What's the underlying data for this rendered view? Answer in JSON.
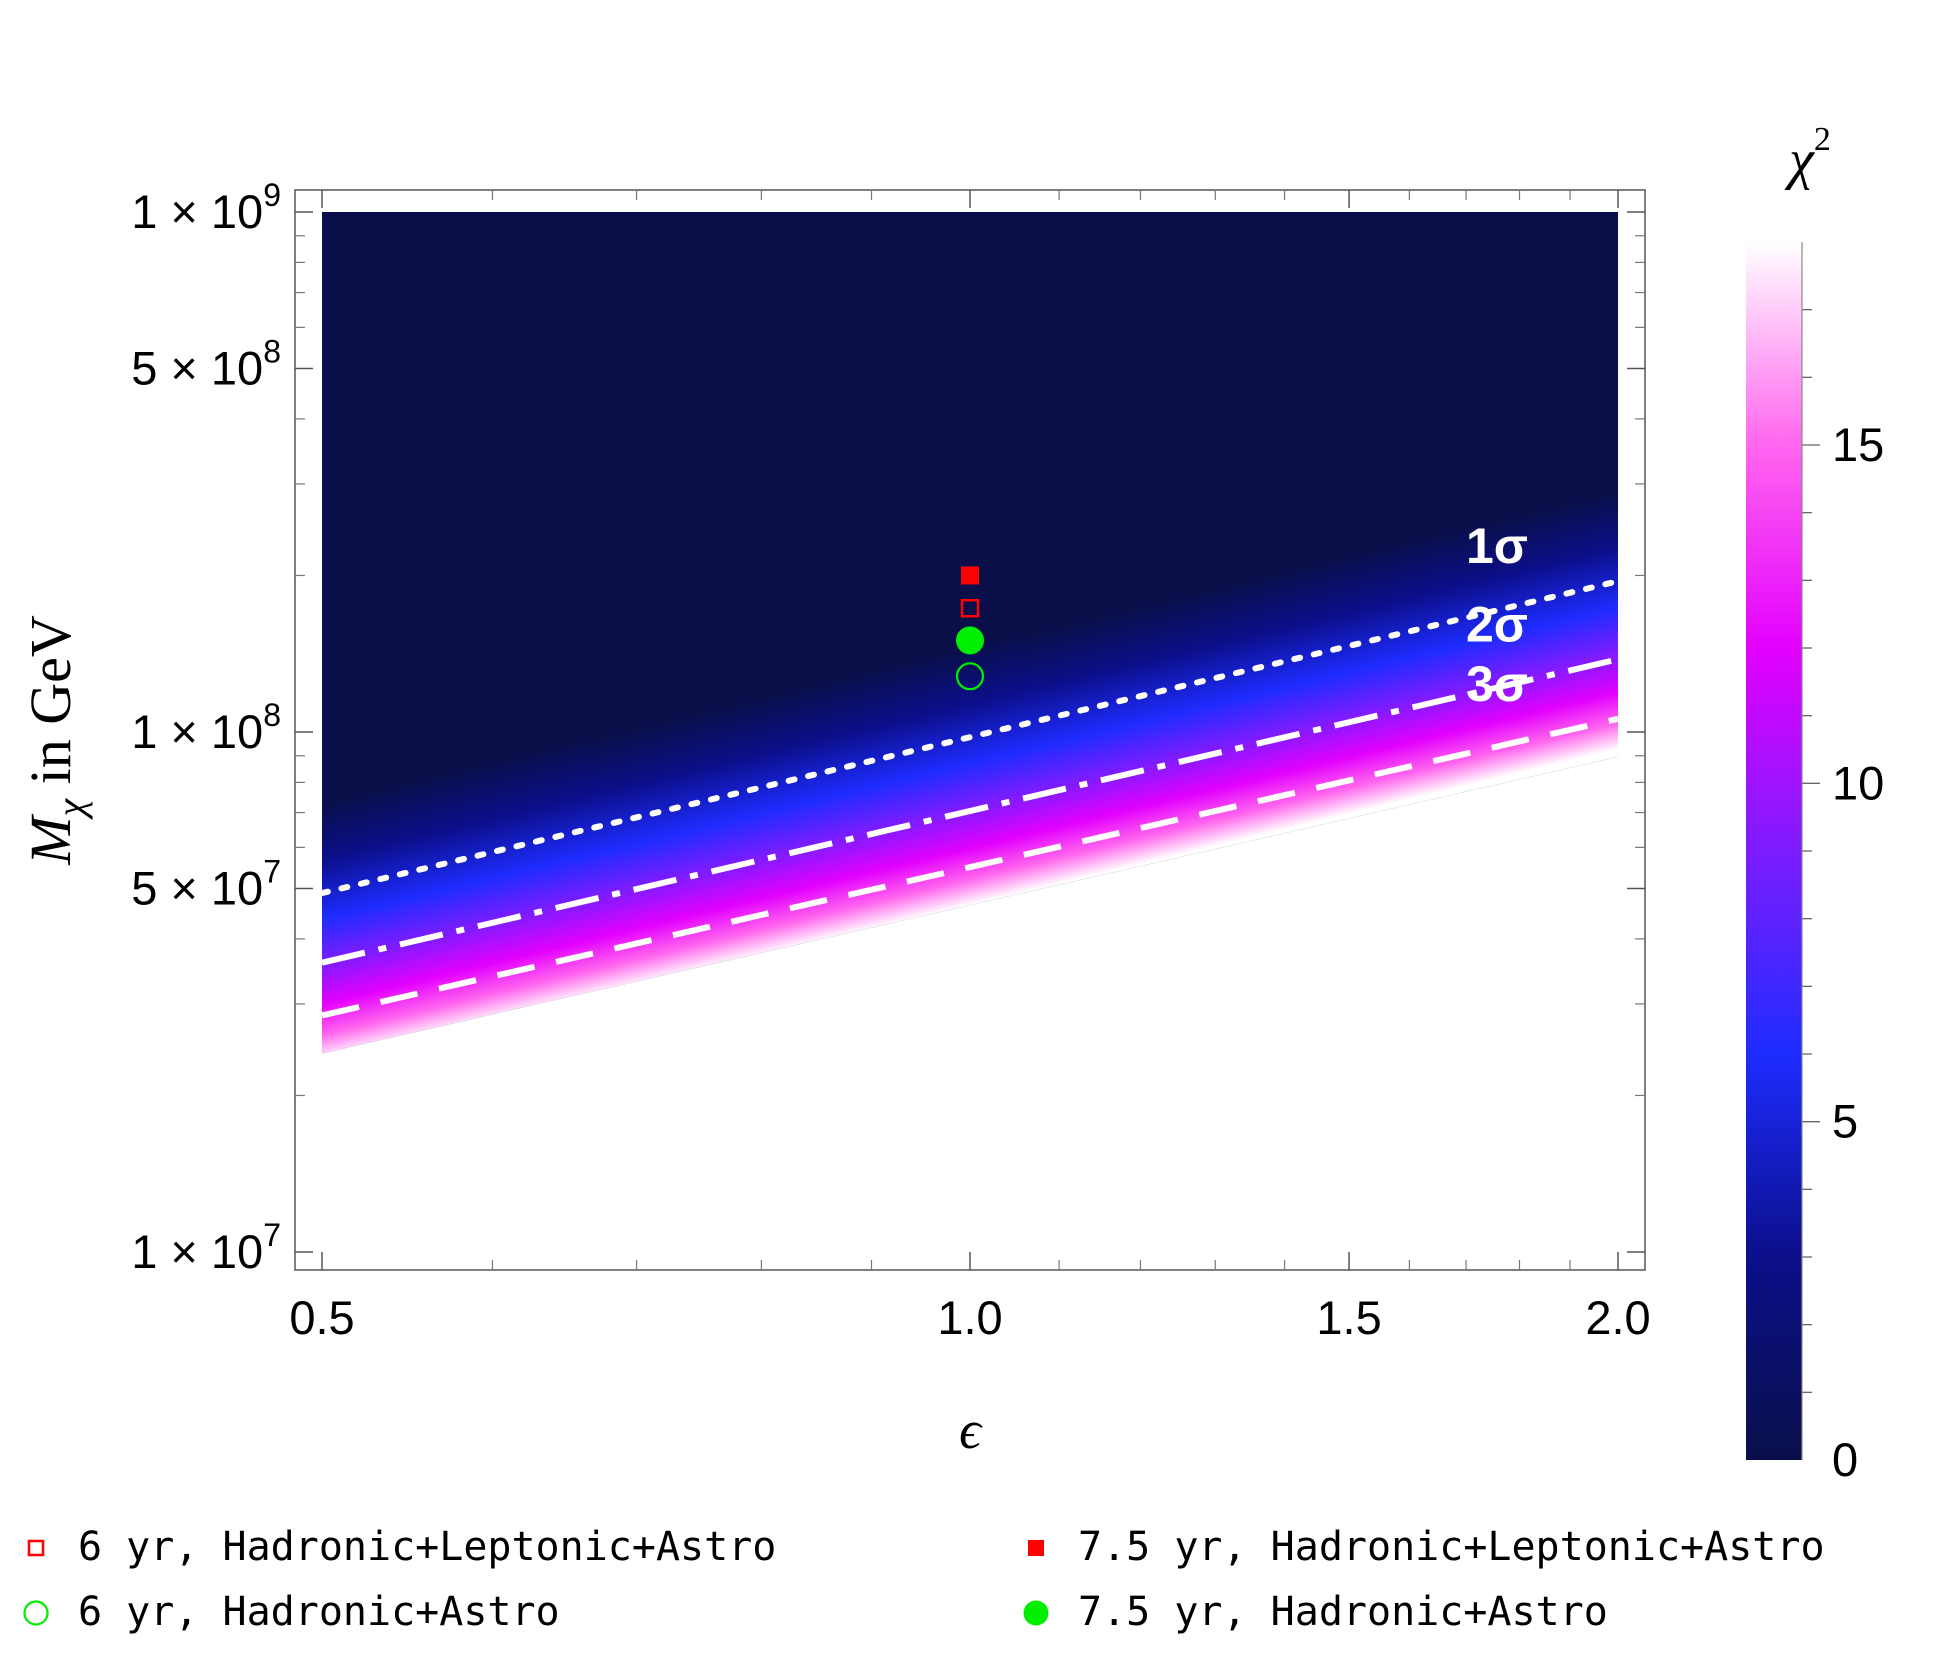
{
  "chart_data": {
    "type": "heatmap",
    "title": "",
    "xlabel": "ϵ",
    "ylabel_main": "M",
    "ylabel_sub": "χ",
    "ylabel_rest": " in GeV",
    "x_scale": "log",
    "y_scale": "log",
    "xlim": [
      0.5,
      2.0
    ],
    "ylim": [
      10000000.0,
      1000000000.0
    ],
    "x_ticks": [
      {
        "value": 0.5,
        "label": "0.5"
      },
      {
        "value": 1.0,
        "label": "1.0"
      },
      {
        "value": 1.5,
        "label": "1.5"
      },
      {
        "value": 2.0,
        "label": "2.0"
      }
    ],
    "y_ticks": [
      {
        "value": 1000000000.0,
        "mant": "1",
        "exp": "9"
      },
      {
        "value": 500000000.0,
        "mant": "5",
        "exp": "8"
      },
      {
        "value": 100000000.0,
        "mant": "1",
        "exp": "8"
      },
      {
        "value": 50000000.0,
        "mant": "5",
        "exp": "7"
      },
      {
        "value": 10000000.0,
        "mant": "1",
        "exp": "7"
      }
    ],
    "colorbar": {
      "label": "χ",
      "label_exp": "2",
      "range": [
        0,
        18
      ],
      "ticks": [
        {
          "value": 0,
          "label": "0"
        },
        {
          "value": 5,
          "label": "5"
        },
        {
          "value": 10,
          "label": "10"
        },
        {
          "value": 15,
          "label": "15"
        }
      ],
      "colors": [
        "#0a0f4a",
        "#0b0f8a",
        "#1e2cff",
        "#7d1cff",
        "#e300ff",
        "#ff66ee",
        "#ffffff"
      ]
    },
    "contours": [
      {
        "label": "1σ",
        "style": "dotted",
        "x": [
          0.5,
          2.0
        ],
        "y": [
          49000000.0,
          195000000.0
        ]
      },
      {
        "label": "2σ",
        "style": "dashdot",
        "x": [
          0.5,
          2.0
        ],
        "y": [
          36000000.0,
          138000000.0
        ]
      },
      {
        "label": "3σ",
        "style": "dashed",
        "x": [
          0.5,
          2.0
        ],
        "y": [
          28500000.0,
          106000000.0
        ]
      }
    ],
    "points": [
      {
        "name": "7.5 yr, Hadronic+Leptonic+Astro",
        "marker": "filled-square",
        "color": "#ff0000",
        "x": 1.0,
        "y": 200000000.0
      },
      {
        "name": "6 yr, Hadronic+Leptonic+Astro",
        "marker": "open-square",
        "color": "#ff0000",
        "x": 1.0,
        "y": 173000000.0
      },
      {
        "name": "7.5 yr, Hadronic+Astro",
        "marker": "filled-circle",
        "color": "#00ee00",
        "x": 1.0,
        "y": 150000000.0
      },
      {
        "name": "6 yr, Hadronic+Astro",
        "marker": "open-circle",
        "color": "#00ee00",
        "x": 1.0,
        "y": 128000000.0
      }
    ],
    "legend_placement": "bottom",
    "legend": [
      {
        "label": "6 yr, Hadronic+Leptonic+Astro",
        "marker": "open-square",
        "color": "#ff0000"
      },
      {
        "label": "7.5 yr, Hadronic+Leptonic+Astro",
        "marker": "filled-square",
        "color": "#ff0000"
      },
      {
        "label": "6 yr, Hadronic+Astro",
        "marker": "open-circle",
        "color": "#00ee00"
      },
      {
        "label": "7.5 yr, Hadronic+Astro",
        "marker": "filled-circle",
        "color": "#00ee00"
      }
    ]
  }
}
